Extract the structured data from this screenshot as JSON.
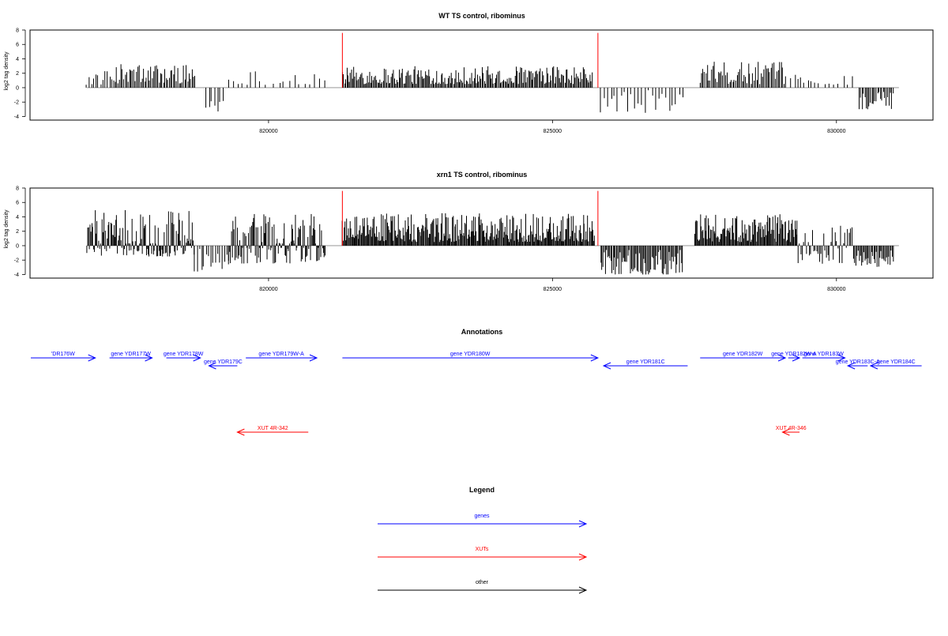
{
  "chart_data": [
    {
      "type": "bar",
      "title": "WT TS control, ribominus",
      "ylabel": "log2 tag density",
      "xlabel": "",
      "ylim": [
        -4.5,
        8
      ],
      "xlim": [
        815800,
        831700
      ],
      "y_ticks": [
        -4,
        -2,
        0,
        2,
        4,
        6,
        8
      ],
      "x_ticks": [
        820000,
        825000,
        830000
      ],
      "bar_color": "#000000",
      "marker_color": "#ff0000",
      "markers": [
        {
          "x": 821300,
          "y": 7.6
        },
        {
          "x": 825800,
          "y": 7.6
        }
      ],
      "segments": [
        {
          "start": 816800,
          "end": 817300,
          "min": 0.4,
          "max": 2.4,
          "step": 40
        },
        {
          "start": 817300,
          "end": 818700,
          "min": 0.6,
          "max": 3.4,
          "step": 25
        },
        {
          "start": 818900,
          "end": 819200,
          "min": -3.5,
          "max": -0.4,
          "step": 50
        },
        {
          "start": 819300,
          "end": 820000,
          "min": 0.4,
          "max": 2.5,
          "step": 80
        },
        {
          "start": 820100,
          "end": 821000,
          "min": 0.4,
          "max": 2.5,
          "step": 90
        },
        {
          "start": 821300,
          "end": 825700,
          "min": 0.5,
          "max": 3.0,
          "step": 20
        },
        {
          "start": 825850,
          "end": 827300,
          "min": -3.5,
          "max": -0.3,
          "step": 60
        },
        {
          "start": 827600,
          "end": 829100,
          "min": 0.5,
          "max": 3.6,
          "step": 25
        },
        {
          "start": 829200,
          "end": 829700,
          "min": 0.4,
          "max": 2.0,
          "step": 60
        },
        {
          "start": 829800,
          "end": 830300,
          "min": 0.4,
          "max": 1.8,
          "step": 80
        },
        {
          "start": 830400,
          "end": 831000,
          "min": -3.0,
          "max": -0.5,
          "step": 25
        }
      ]
    },
    {
      "type": "bar",
      "title": "xrn1 TS control, ribominus",
      "ylabel": "log2 tag density",
      "xlabel": "",
      "ylim": [
        -4.5,
        8
      ],
      "xlim": [
        815800,
        831700
      ],
      "y_ticks": [
        -4,
        -2,
        0,
        2,
        4,
        6,
        8
      ],
      "x_ticks": [
        820000,
        825000,
        830000
      ],
      "bar_color": "#000000",
      "marker_color": "#ff0000",
      "markers": [
        {
          "x": 821300,
          "y": 7.6
        },
        {
          "x": 825800,
          "y": 7.6
        }
      ],
      "segments": [
        {
          "start": 816800,
          "end": 818700,
          "min": -1.5,
          "max": 5.0,
          "step": 15
        },
        {
          "start": 818700,
          "end": 819300,
          "min": -3.6,
          "max": -0.3,
          "step": 40
        },
        {
          "start": 819300,
          "end": 821000,
          "min": -2.5,
          "max": 4.5,
          "step": 15
        },
        {
          "start": 821300,
          "end": 825750,
          "min": 0.5,
          "max": 4.5,
          "step": 15
        },
        {
          "start": 825850,
          "end": 827300,
          "min": -4.0,
          "max": -0.5,
          "step": 20
        },
        {
          "start": 827500,
          "end": 829300,
          "min": 0.5,
          "max": 4.4,
          "step": 15
        },
        {
          "start": 829300,
          "end": 830300,
          "min": -2.5,
          "max": 2.8,
          "step": 25
        },
        {
          "start": 830300,
          "end": 831000,
          "min": -3.0,
          "max": -0.5,
          "step": 20
        }
      ]
    }
  ],
  "annotations": {
    "title": "Annotations",
    "genes": [
      {
        "label": "YDR176W",
        "display": "'DR176W",
        "start": 815800,
        "end": 816950,
        "strand": "+",
        "row": 0
      },
      {
        "label": "gene YDR177W",
        "display": "gene YDR177W",
        "start": 817200,
        "end": 817950,
        "strand": "+",
        "row": 0
      },
      {
        "label": "gene YDR178W",
        "display": "gene YDR178W",
        "start": 818200,
        "end": 818800,
        "strand": "+",
        "row": 0
      },
      {
        "label": "gene YDR179C",
        "display": "gene YDR179C",
        "start": 818950,
        "end": 819450,
        "strand": "-",
        "row": 1
      },
      {
        "label": "gene YDR179W-A",
        "display": "gene YDR179W-A",
        "start": 819600,
        "end": 820850,
        "strand": "+",
        "row": 0
      },
      {
        "label": "gene YDR180W",
        "display": "gene YDR180W",
        "start": 821300,
        "end": 825800,
        "strand": "+",
        "row": 0
      },
      {
        "label": "gene YDR181C",
        "display": "gene YDR181C",
        "start": 825900,
        "end": 827380,
        "strand": "-",
        "row": 1
      },
      {
        "label": "gene YDR182W",
        "display": "gene YDR182W",
        "start": 827600,
        "end": 829100,
        "strand": "+",
        "row": 0
      },
      {
        "label": "gene YDR182W-A",
        "display": "gene YDR182W-A",
        "start": 829150,
        "end": 829350,
        "strand": "+",
        "row": 0
      },
      {
        "label": "gene YDR183W",
        "display": "gene YDR183W",
        "start": 829400,
        "end": 830150,
        "strand": "+",
        "row": 0
      },
      {
        "label": "gene YDR183C-A",
        "display": "gene YDR183C-A",
        "start": 830200,
        "end": 830550,
        "strand": "-",
        "row": 1
      },
      {
        "label": "gene YDR184C",
        "display": "gene YDR184C",
        "start": 830600,
        "end": 831500,
        "strand": "-",
        "row": 1
      }
    ],
    "xuts": [
      {
        "label": "XUT 4R-342",
        "start": 819450,
        "end": 820700,
        "strand": "-"
      },
      {
        "label": "XUT 4R-346",
        "start": 829050,
        "end": 829350,
        "strand": "-"
      }
    ]
  },
  "legend": {
    "title": "Legend",
    "items": [
      {
        "label": "genes",
        "color": "#0000ff"
      },
      {
        "label": "XUTs",
        "color": "#ff0000"
      },
      {
        "label": "other",
        "color": "#000000"
      }
    ]
  },
  "colors": {
    "gene": "#0000ff",
    "xut": "#ff0000",
    "other": "#000000",
    "axis": "#000000",
    "baseline": "#888888"
  }
}
